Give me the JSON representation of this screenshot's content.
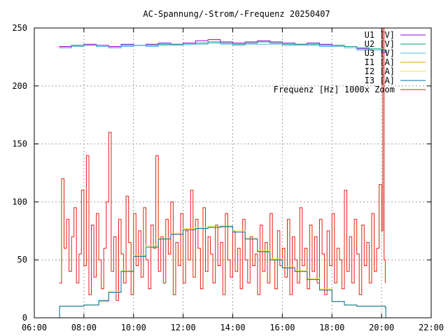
{
  "chart_data": {
    "type": "line",
    "title": "AC-Spannung/-Strom/-Frequenz 20250407",
    "xlabel": "",
    "ylabel": "",
    "x_ticks": [
      "06:00",
      "08:00",
      "10:00",
      "12:00",
      "14:00",
      "16:00",
      "18:00",
      "20:00",
      "22:00"
    ],
    "y_ticks": [
      "0",
      "50",
      "100",
      "150",
      "200",
      "250"
    ],
    "xlim": [
      "06:00",
      "22:00"
    ],
    "ylim": [
      0,
      250
    ],
    "grid": true,
    "legend_position": "top-right",
    "x_unit": "hour",
    "series": [
      {
        "name": "U1 [V]",
        "color": "#9400d3",
        "x": [
          7.0,
          7.5,
          8.0,
          8.5,
          9.0,
          9.5,
          10.0,
          10.5,
          11.0,
          11.5,
          12.0,
          12.5,
          13.0,
          13.5,
          14.0,
          14.5,
          15.0,
          15.5,
          16.0,
          16.5,
          17.0,
          17.5,
          18.0,
          18.5,
          19.0,
          19.5,
          20.0,
          20.2
        ],
        "values": [
          234,
          235,
          236,
          235,
          234,
          236,
          235,
          236,
          237,
          236,
          237,
          239,
          240,
          238,
          237,
          238,
          239,
          238,
          237,
          236,
          237,
          236,
          235,
          234,
          232,
          231,
          229,
          227
        ]
      },
      {
        "name": "U2 [V]",
        "color": "#009e73",
        "x": [
          7.0,
          7.5,
          8.0,
          8.5,
          9.0,
          9.5,
          10.0,
          10.5,
          11.0,
          11.5,
          12.0,
          12.5,
          13.0,
          13.5,
          14.0,
          14.5,
          15.0,
          15.5,
          16.0,
          16.5,
          17.0,
          17.5,
          18.0,
          18.5,
          19.0,
          19.5,
          20.0,
          20.2
        ],
        "values": [
          233,
          235,
          235,
          234,
          233,
          235,
          235,
          235,
          236,
          236,
          236,
          237,
          238,
          237,
          236,
          237,
          238,
          237,
          236,
          236,
          236,
          235,
          235,
          234,
          233,
          232,
          231,
          230
        ]
      },
      {
        "name": "U3 [V]",
        "color": "#56b4e9",
        "x": [
          7.0,
          7.5,
          8.0,
          8.5,
          9.0,
          9.5,
          10.0,
          10.5,
          11.0,
          11.5,
          12.0,
          12.5,
          13.0,
          13.5,
          14.0,
          14.5,
          15.0,
          15.5,
          16.0,
          16.5,
          17.0,
          17.5,
          18.0,
          18.5,
          19.0,
          19.5,
          20.0,
          20.2
        ],
        "values": [
          233,
          234,
          235,
          234,
          233,
          234,
          235,
          234,
          235,
          235,
          236,
          236,
          237,
          236,
          235,
          236,
          236,
          236,
          235,
          235,
          235,
          234,
          234,
          233,
          231,
          231,
          230,
          229
        ]
      },
      {
        "name": "I1 [A]",
        "color": "#e69f00",
        "x": [
          7.0,
          7.02,
          7.5,
          8.0,
          8.5,
          8.6,
          9.0,
          9.5,
          10.0,
          10.5,
          11.0,
          11.5,
          12.0,
          12.5,
          13.0,
          13.5,
          14.0,
          14.5,
          15.0,
          15.5,
          16.0,
          16.5,
          17.0,
          17.5,
          18.0,
          18.5,
          19.0,
          19.5,
          20.0,
          20.15,
          20.17
        ],
        "values": [
          0,
          10,
          10,
          11,
          11,
          14,
          22,
          40,
          53,
          61,
          68,
          72,
          76,
          77,
          78,
          78,
          74,
          68,
          57,
          50,
          43,
          40,
          33,
          24,
          14,
          11,
          10,
          10,
          10,
          9,
          0
        ]
      },
      {
        "name": "I2 [A]",
        "color": "#f0e442",
        "x": [
          7.0,
          7.02,
          7.5,
          8.0,
          8.5,
          8.6,
          9.0,
          9.5,
          10.0,
          10.5,
          11.0,
          11.5,
          12.0,
          12.5,
          13.0,
          13.5,
          14.0,
          14.5,
          15.0,
          15.5,
          16.0,
          16.5,
          17.0,
          17.5,
          18.0,
          18.5,
          19.0,
          19.5,
          20.0,
          20.15,
          20.17
        ],
        "values": [
          0,
          10,
          10,
          11,
          11,
          15,
          23,
          41,
          54,
          62,
          69,
          73,
          77,
          78,
          79,
          79,
          75,
          69,
          58,
          51,
          44,
          41,
          34,
          25,
          14,
          11,
          10,
          10,
          10,
          9,
          0
        ]
      },
      {
        "name": "I3 [A]",
        "color": "#0072b2",
        "x": [
          7.0,
          7.02,
          7.5,
          8.0,
          8.5,
          8.6,
          9.0,
          9.5,
          10.0,
          10.5,
          11.0,
          11.5,
          12.0,
          12.5,
          13.0,
          13.5,
          14.0,
          14.5,
          15.0,
          15.5,
          16.0,
          16.5,
          17.0,
          17.5,
          18.0,
          18.5,
          19.0,
          19.5,
          20.0,
          20.15,
          20.17
        ],
        "values": [
          0,
          10,
          10,
          11,
          11,
          15,
          22,
          40,
          53,
          61,
          68,
          72,
          76,
          77,
          78,
          79,
          74,
          68,
          57,
          50,
          43,
          40,
          33,
          24,
          14,
          11,
          10,
          10,
          10,
          9,
          0
        ]
      },
      {
        "name": "Frequenz [Hz] 1000x Zoom",
        "color": "#e51e10",
        "x": [
          7.0,
          7.1,
          7.2,
          7.3,
          7.4,
          7.5,
          7.6,
          7.7,
          7.8,
          7.9,
          8.0,
          8.1,
          8.2,
          8.3,
          8.4,
          8.5,
          8.6,
          8.7,
          8.8,
          8.9,
          9.0,
          9.1,
          9.2,
          9.3,
          9.4,
          9.5,
          9.6,
          9.7,
          9.8,
          9.9,
          10.0,
          10.1,
          10.2,
          10.3,
          10.4,
          10.5,
          10.6,
          10.7,
          10.8,
          10.9,
          11.0,
          11.1,
          11.2,
          11.3,
          11.4,
          11.5,
          11.6,
          11.7,
          11.8,
          11.9,
          12.0,
          12.1,
          12.2,
          12.3,
          12.4,
          12.5,
          12.6,
          12.7,
          12.8,
          12.9,
          13.0,
          13.1,
          13.2,
          13.3,
          13.4,
          13.5,
          13.6,
          13.7,
          13.8,
          13.9,
          14.0,
          14.1,
          14.2,
          14.3,
          14.4,
          14.5,
          14.6,
          14.7,
          14.8,
          14.9,
          15.0,
          15.1,
          15.2,
          15.3,
          15.4,
          15.5,
          15.6,
          15.7,
          15.8,
          15.9,
          16.0,
          16.1,
          16.2,
          16.3,
          16.4,
          16.5,
          16.6,
          16.7,
          16.8,
          16.9,
          17.0,
          17.1,
          17.2,
          17.3,
          17.4,
          17.5,
          17.6,
          17.7,
          17.8,
          17.9,
          18.0,
          18.1,
          18.2,
          18.3,
          18.4,
          18.5,
          18.6,
          18.7,
          18.8,
          18.9,
          19.0,
          19.1,
          19.2,
          19.3,
          19.4,
          19.5,
          19.6,
          19.7,
          19.8,
          19.9,
          20.0,
          20.05,
          20.1,
          20.15
        ],
        "values": [
          30,
          120,
          60,
          85,
          40,
          70,
          95,
          30,
          55,
          110,
          45,
          140,
          20,
          80,
          35,
          90,
          50,
          25,
          60,
          100,
          160,
          40,
          70,
          15,
          85,
          55,
          30,
          105,
          65,
          20,
          90,
          45,
          75,
          35,
          95,
          50,
          25,
          80,
          60,
          140,
          40,
          70,
          30,
          85,
          55,
          100,
          20,
          65,
          45,
          90,
          30,
          75,
          50,
          110,
          35,
          85,
          60,
          25,
          95,
          40,
          70,
          55,
          30,
          80,
          45,
          65,
          20,
          90,
          50,
          35,
          75,
          40,
          60,
          25,
          85,
          50,
          30,
          70,
          45,
          55,
          20,
          80,
          40,
          65,
          30,
          90,
          50,
          25,
          75,
          45,
          60,
          35,
          85,
          20,
          70,
          50,
          30,
          95,
          45,
          60,
          25,
          80,
          40,
          70,
          30,
          85,
          55,
          20,
          75,
          45,
          90,
          30,
          60,
          50,
          25,
          110,
          40,
          70,
          30,
          85,
          55,
          20,
          80,
          45,
          65,
          30,
          90,
          40,
          60,
          115,
          75,
          255,
          50,
          30
        ]
      }
    ]
  }
}
